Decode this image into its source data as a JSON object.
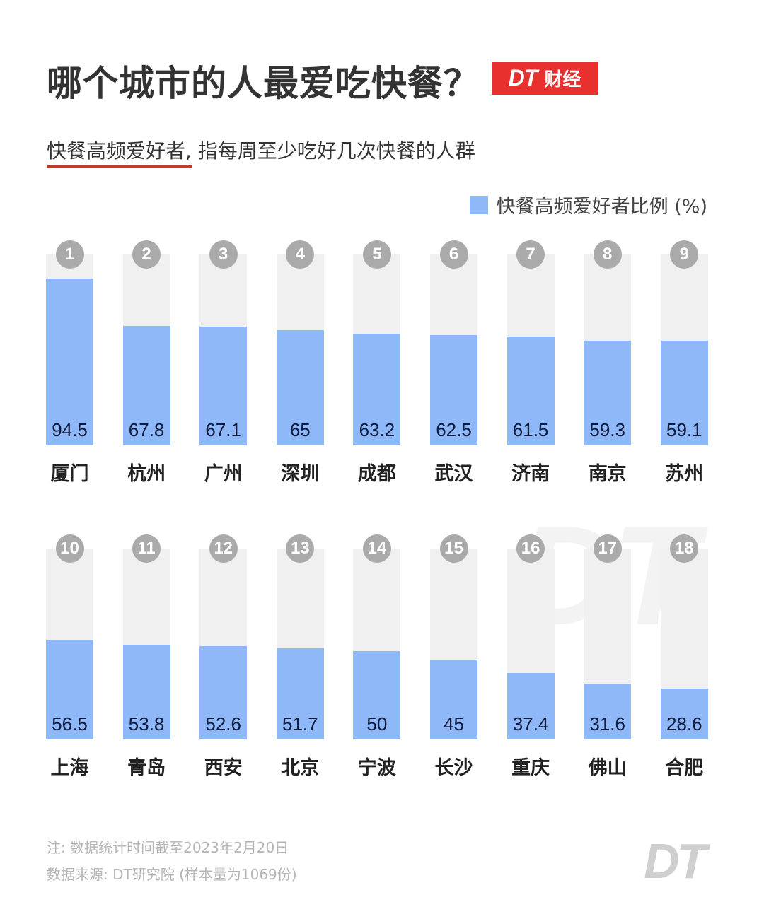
{
  "header": {
    "title": "哪个城市的人最爱吃快餐？",
    "badge_dt": "DT",
    "badge_text": "财经",
    "subtitle_highlight": "快餐高频爱好者,",
    "subtitle_rest": " 指每周至少吃好几次快餐的人群"
  },
  "legend": {
    "label": "快餐高频爱好者比例 (%)",
    "color": "#8fb8f8"
  },
  "watermark": "DT",
  "footer": {
    "note": "注: 数据统计时间截至2023年2月20日",
    "source": "数据来源: DT研究院 (样本量为1069份)",
    "logo": "DT"
  },
  "chart_data": {
    "type": "bar",
    "title": "哪个城市的人最爱吃快餐？",
    "subtitle": "快餐高频爱好者, 指每周至少吃好几次快餐的人群",
    "xlabel": "",
    "ylabel": "快餐高频爱好者比例 (%)",
    "ylim": [
      0,
      100
    ],
    "legend": [
      "快餐高频爱好者比例 (%)"
    ],
    "grid": false,
    "categories": [
      "厦门",
      "杭州",
      "广州",
      "深圳",
      "成都",
      "武汉",
      "济南",
      "南京",
      "苏州",
      "上海",
      "青岛",
      "西安",
      "北京",
      "宁波",
      "长沙",
      "重庆",
      "佛山",
      "合肥"
    ],
    "ranks": [
      1,
      2,
      3,
      4,
      5,
      6,
      7,
      8,
      9,
      10,
      11,
      12,
      13,
      14,
      15,
      16,
      17,
      18
    ],
    "values": [
      94.5,
      67.8,
      67.1,
      65,
      63.2,
      62.5,
      61.5,
      59.3,
      59.1,
      56.5,
      53.8,
      52.6,
      51.7,
      50,
      45,
      37.4,
      31.6,
      28.6
    ],
    "bar_color": "#8fb8f8",
    "track_color": "#f0f0f0",
    "rows": [
      [
        {
          "rank": "1",
          "city": "厦门",
          "value": "94.5"
        },
        {
          "rank": "2",
          "city": "杭州",
          "value": "67.8"
        },
        {
          "rank": "3",
          "city": "广州",
          "value": "67.1"
        },
        {
          "rank": "4",
          "city": "深圳",
          "value": "65"
        },
        {
          "rank": "5",
          "city": "成都",
          "value": "63.2"
        },
        {
          "rank": "6",
          "city": "武汉",
          "value": "62.5"
        },
        {
          "rank": "7",
          "city": "济南",
          "value": "61.5"
        },
        {
          "rank": "8",
          "city": "南京",
          "value": "59.3"
        },
        {
          "rank": "9",
          "city": "苏州",
          "value": "59.1"
        }
      ],
      [
        {
          "rank": "10",
          "city": "上海",
          "value": "56.5"
        },
        {
          "rank": "11",
          "city": "青岛",
          "value": "53.8"
        },
        {
          "rank": "12",
          "city": "西安",
          "value": "52.6"
        },
        {
          "rank": "13",
          "city": "北京",
          "value": "51.7"
        },
        {
          "rank": "14",
          "city": "宁波",
          "value": "50"
        },
        {
          "rank": "15",
          "city": "长沙",
          "value": "45"
        },
        {
          "rank": "16",
          "city": "重庆",
          "value": "37.4"
        },
        {
          "rank": "17",
          "city": "佛山",
          "value": "31.6"
        },
        {
          "rank": "18",
          "city": "合肥",
          "value": "28.6"
        }
      ]
    ]
  }
}
